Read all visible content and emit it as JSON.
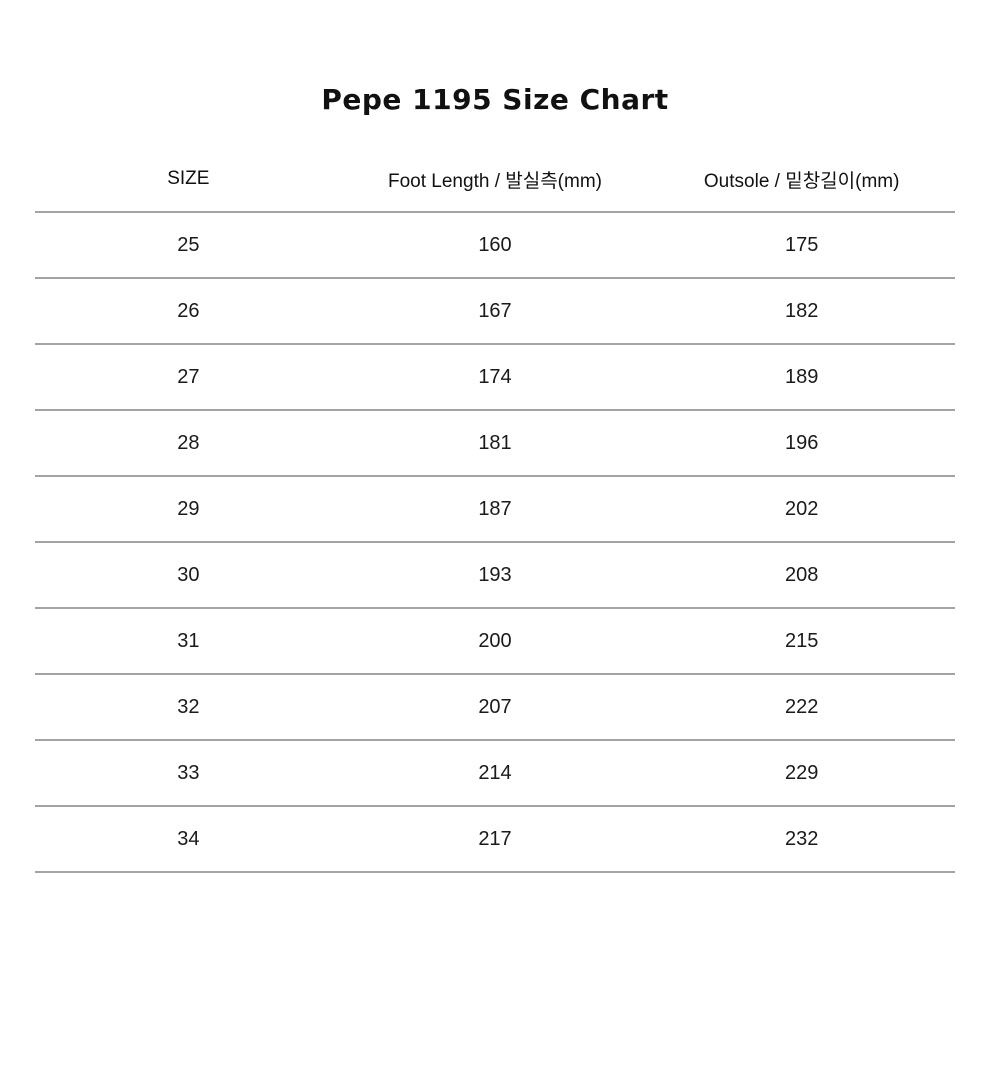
{
  "title": "Pepe 1195 Size Chart",
  "colors": {
    "background": "#ffffff",
    "text": "#111111",
    "divider": "#a3a3a3"
  },
  "chart_data": {
    "type": "table",
    "title": "Pepe 1195 Size Chart",
    "columns": [
      "SIZE",
      "Foot Length / 발실측(mm)",
      "Outsole / 밑창길이(mm)"
    ],
    "rows": [
      [
        "25",
        "160",
        "175"
      ],
      [
        "26",
        "167",
        "182"
      ],
      [
        "27",
        "174",
        "189"
      ],
      [
        "28",
        "181",
        "196"
      ],
      [
        "29",
        "187",
        "202"
      ],
      [
        "30",
        "193",
        "208"
      ],
      [
        "31",
        "200",
        "215"
      ],
      [
        "32",
        "207",
        "222"
      ],
      [
        "33",
        "214",
        "229"
      ],
      [
        "34",
        "217",
        "232"
      ]
    ]
  }
}
